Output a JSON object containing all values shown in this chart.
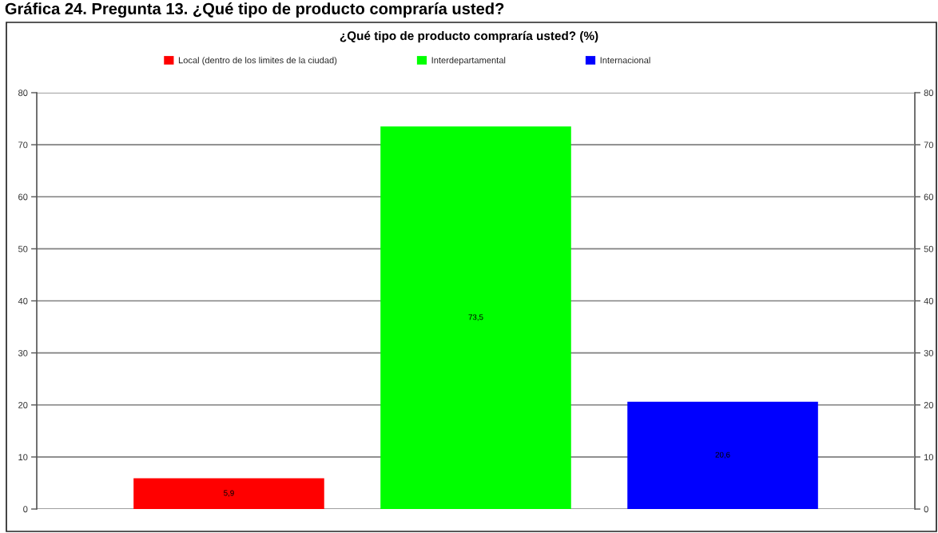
{
  "chart_data": {
    "type": "bar",
    "title": "Gráfica 24. Pregunta 13. ¿Qué tipo de producto compraría usted?",
    "subtitle": "¿Qué tipo de producto compraría usted? (%)",
    "categories": [
      null
    ],
    "series": [
      {
        "name": "Local (dentro de los limites de la ciudad)",
        "color": "#ff0000",
        "values": [
          5.9
        ],
        "value_labels": [
          "5,9"
        ]
      },
      {
        "name": "Interdepartamental",
        "color": "#00ff00",
        "values": [
          73.5
        ],
        "value_labels": [
          "73,5"
        ]
      },
      {
        "name": "Internacional",
        "color": "#0000ff",
        "values": [
          20.6
        ],
        "value_labels": [
          "20,6"
        ]
      }
    ],
    "ylim": [
      0,
      80
    ],
    "yticks": [
      0,
      10,
      20,
      30,
      40,
      50,
      60,
      70,
      80
    ],
    "y2lim": [
      0,
      80
    ],
    "y2ticks": [
      0,
      10,
      20,
      30,
      40,
      50,
      60,
      70,
      80
    ],
    "grid": "y",
    "legend": "top",
    "tick_labels": "y"
  }
}
